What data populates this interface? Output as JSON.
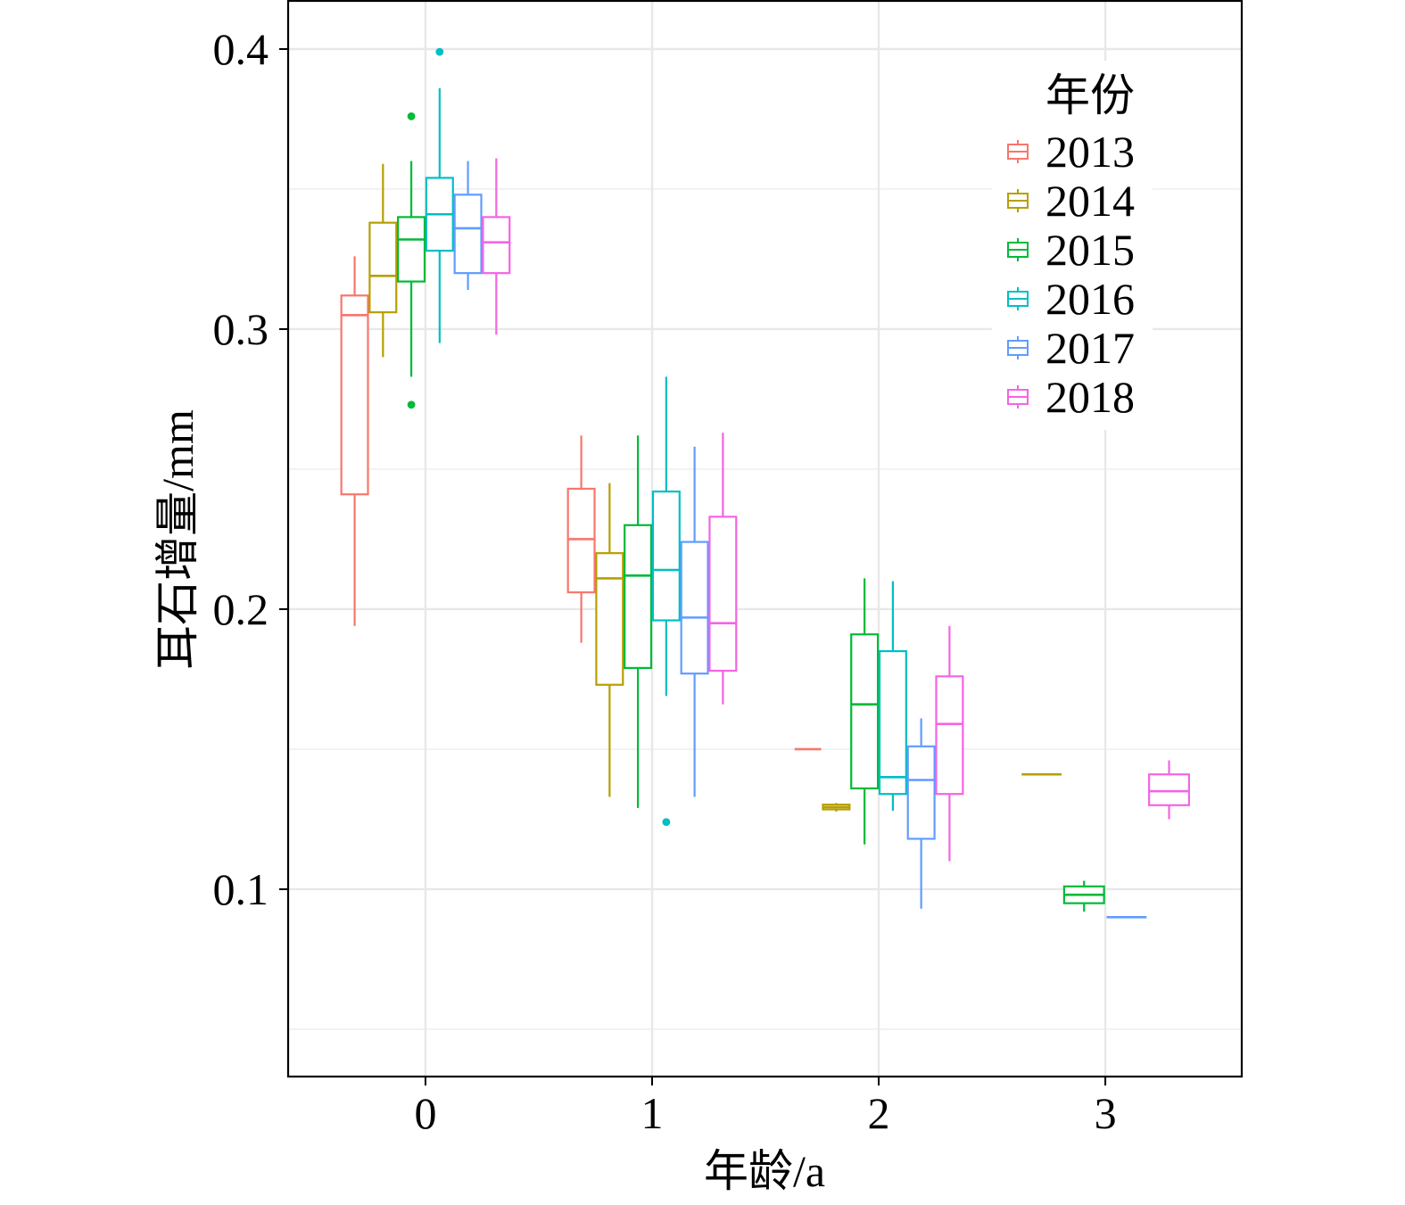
{
  "chart_data": {
    "type": "boxplot",
    "xlabel": "年龄/a",
    "ylabel": "耳石增量/mm",
    "x_ticks": [
      "0",
      "1",
      "2",
      "3"
    ],
    "y_ticks": [
      "0.1",
      "0.2",
      "0.3",
      "0.4"
    ],
    "y_minor_breaks": [
      0.05,
      0.15,
      0.25,
      0.35
    ],
    "xlim": [
      -0.606,
      3.602
    ],
    "ylim": [
      0.0331,
      0.4172
    ],
    "grid": true,
    "legend": {
      "title": "年份",
      "position": "top-right"
    },
    "categories": [
      0,
      1,
      2,
      3
    ],
    "series": [
      {
        "name": "2013",
        "color": "#F8766D",
        "boxes": [
          {
            "x": 0,
            "lower": 0.194,
            "q1": 0.241,
            "median": 0.305,
            "q3": 0.312,
            "upper": 0.326,
            "outliers": []
          },
          {
            "x": 1,
            "lower": 0.188,
            "q1": 0.206,
            "median": 0.225,
            "q3": 0.243,
            "upper": 0.262,
            "outliers": []
          },
          {
            "x": 2,
            "lower": 0.15,
            "q1": 0.15,
            "median": 0.15,
            "q3": 0.15,
            "upper": 0.15,
            "outliers": []
          }
        ]
      },
      {
        "name": "2014",
        "color": "#B79F00",
        "boxes": [
          {
            "x": 0,
            "lower": 0.29,
            "q1": 0.306,
            "median": 0.319,
            "q3": 0.338,
            "upper": 0.359,
            "outliers": []
          },
          {
            "x": 1,
            "lower": 0.133,
            "q1": 0.173,
            "median": 0.211,
            "q3": 0.22,
            "upper": 0.245,
            "outliers": []
          },
          {
            "x": 2,
            "lower": 0.1277,
            "q1": 0.1285,
            "median": 0.1293,
            "q3": 0.1302,
            "upper": 0.1308,
            "outliers": []
          },
          {
            "x": 3,
            "lower": 0.141,
            "q1": 0.141,
            "median": 0.141,
            "q3": 0.141,
            "upper": 0.141,
            "outliers": []
          }
        ]
      },
      {
        "name": "2015",
        "color": "#00BA38",
        "boxes": [
          {
            "x": 0,
            "lower": 0.283,
            "q1": 0.317,
            "median": 0.332,
            "q3": 0.34,
            "upper": 0.36,
            "outliers": [
              0.376,
              0.273
            ]
          },
          {
            "x": 1,
            "lower": 0.129,
            "q1": 0.179,
            "median": 0.212,
            "q3": 0.23,
            "upper": 0.262,
            "outliers": []
          },
          {
            "x": 2,
            "lower": 0.116,
            "q1": 0.136,
            "median": 0.166,
            "q3": 0.191,
            "upper": 0.211,
            "outliers": []
          },
          {
            "x": 3,
            "lower": 0.092,
            "q1": 0.095,
            "median": 0.098,
            "q3": 0.101,
            "upper": 0.103,
            "outliers": []
          }
        ]
      },
      {
        "name": "2016",
        "color": "#00BFC4",
        "boxes": [
          {
            "x": 0,
            "lower": 0.295,
            "q1": 0.328,
            "median": 0.341,
            "q3": 0.354,
            "upper": 0.386,
            "outliers": [
              0.399
            ]
          },
          {
            "x": 1,
            "lower": 0.169,
            "q1": 0.196,
            "median": 0.214,
            "q3": 0.242,
            "upper": 0.283,
            "outliers": [
              0.124
            ]
          },
          {
            "x": 2,
            "lower": 0.128,
            "q1": 0.134,
            "median": 0.14,
            "q3": 0.185,
            "upper": 0.21,
            "outliers": []
          }
        ]
      },
      {
        "name": "2017",
        "color": "#619CFF",
        "boxes": [
          {
            "x": 0,
            "lower": 0.314,
            "q1": 0.32,
            "median": 0.336,
            "q3": 0.348,
            "upper": 0.36,
            "outliers": []
          },
          {
            "x": 1,
            "lower": 0.133,
            "q1": 0.177,
            "median": 0.197,
            "q3": 0.224,
            "upper": 0.258,
            "outliers": []
          },
          {
            "x": 2,
            "lower": 0.093,
            "q1": 0.118,
            "median": 0.139,
            "q3": 0.151,
            "upper": 0.161,
            "outliers": []
          },
          {
            "x": 3,
            "lower": 0.09,
            "q1": 0.09,
            "median": 0.09,
            "q3": 0.09,
            "upper": 0.09,
            "outliers": []
          }
        ]
      },
      {
        "name": "2018",
        "color": "#F564E3",
        "boxes": [
          {
            "x": 0,
            "lower": 0.298,
            "q1": 0.32,
            "median": 0.331,
            "q3": 0.34,
            "upper": 0.361,
            "outliers": []
          },
          {
            "x": 1,
            "lower": 0.166,
            "q1": 0.178,
            "median": 0.195,
            "q3": 0.233,
            "upper": 0.263,
            "outliers": []
          },
          {
            "x": 2,
            "lower": 0.11,
            "q1": 0.134,
            "median": 0.159,
            "q3": 0.176,
            "upper": 0.194,
            "outliers": []
          },
          {
            "x": 3,
            "lower": 0.125,
            "q1": 0.13,
            "median": 0.135,
            "q3": 0.141,
            "upper": 0.146,
            "outliers": []
          }
        ]
      }
    ]
  }
}
